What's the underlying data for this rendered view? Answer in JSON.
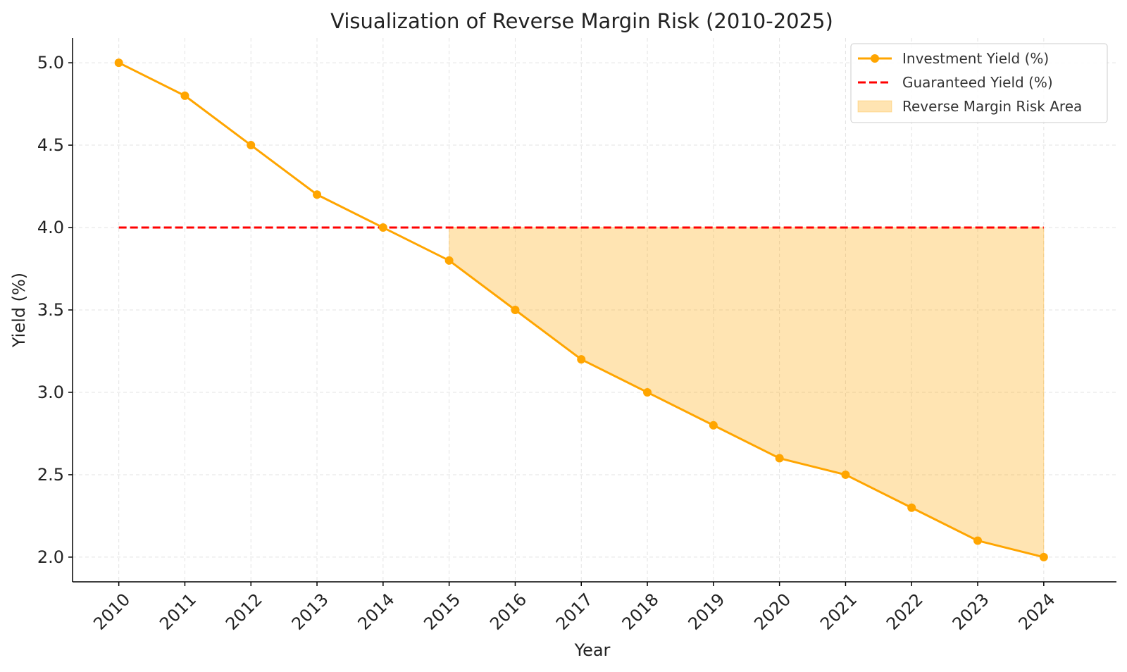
{
  "chart_data": {
    "type": "line",
    "title": "Visualization of Reverse Margin Risk (2010-2025)",
    "xlabel": "Year",
    "ylabel": "Yield (%)",
    "x": [
      2010,
      2011,
      2012,
      2013,
      2014,
      2015,
      2016,
      2017,
      2018,
      2019,
      2020,
      2021,
      2022,
      2023,
      2024
    ],
    "x_tick_labels": [
      "2010",
      "2011",
      "2012",
      "2013",
      "2014",
      "2015",
      "2016",
      "2017",
      "2018",
      "2019",
      "2020",
      "2021",
      "2022",
      "2023",
      "2024"
    ],
    "xlim": [
      2009.3,
      2025.1
    ],
    "ylim": [
      1.85,
      5.15
    ],
    "y_ticks": [
      2.0,
      2.5,
      3.0,
      3.5,
      4.0,
      4.5,
      5.0
    ],
    "y_tick_labels": [
      "2.0",
      "2.5",
      "3.0",
      "3.5",
      "4.0",
      "4.5",
      "5.0"
    ],
    "grid": true,
    "series": [
      {
        "name": "Investment Yield (%)",
        "style": "solid-with-markers",
        "color": "#FFA500",
        "values": [
          5.0,
          4.8,
          4.5,
          4.2,
          4.0,
          3.8,
          3.5,
          3.2,
          3.0,
          2.8,
          2.6,
          2.5,
          2.3,
          2.1,
          2.0
        ]
      },
      {
        "name": "Guaranteed Yield (%)",
        "style": "dashed",
        "color": "#FF0000",
        "values": [
          4.0,
          4.0,
          4.0,
          4.0,
          4.0,
          4.0,
          4.0,
          4.0,
          4.0,
          4.0,
          4.0,
          4.0,
          4.0,
          4.0,
          4.0
        ]
      }
    ],
    "fill_area": {
      "name": "Reverse Margin Risk Area",
      "color": "#FFA500",
      "opacity": 0.3,
      "x_start": 2015,
      "x_end": 2024,
      "between": [
        "Investment Yield (%)",
        "Guaranteed Yield (%)"
      ]
    },
    "legend": {
      "position": "top-right",
      "entries": [
        "Investment Yield (%)",
        "Guaranteed Yield (%)",
        "Reverse Margin Risk Area"
      ]
    }
  }
}
